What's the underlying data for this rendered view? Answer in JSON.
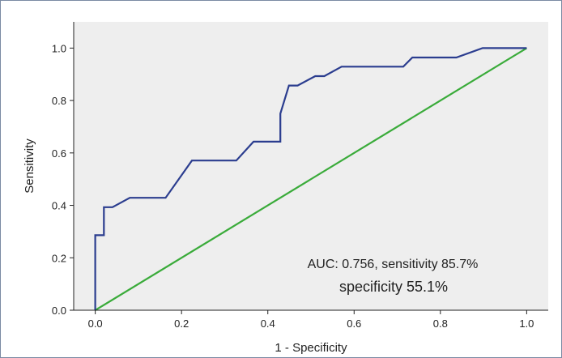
{
  "chart_data": {
    "type": "line",
    "title": "",
    "xlabel": "1 - Specificity",
    "ylabel": "Sensitivity",
    "xlim": [
      -0.05,
      1.05
    ],
    "ylim": [
      0.0,
      1.1
    ],
    "x_ticks": [
      "0.0",
      "0.2",
      "0.4",
      "0.6",
      "0.8",
      "1.0"
    ],
    "y_ticks": [
      "0.0",
      "0.2",
      "0.4",
      "0.6",
      "0.8",
      "1.0"
    ],
    "grid": false,
    "plot_background": "#eeeeee",
    "annotation_line1": "AUC: 0.756, sensitivity 85.7%",
    "annotation_line2": "specificity 55.1%",
    "series": [
      {
        "color": "#2b3d8f",
        "x": [
          0.0,
          0.0,
          0.0,
          0.02,
          0.02,
          0.04,
          0.08,
          0.163,
          0.224,
          0.327,
          0.367,
          0.429,
          0.429,
          0.449,
          0.469,
          0.51,
          0.531,
          0.571,
          0.714,
          0.735,
          0.837,
          0.898,
          1.0
        ],
        "y": [
          0.0,
          0.286,
          0.286,
          0.286,
          0.393,
          0.393,
          0.429,
          0.429,
          0.571,
          0.571,
          0.643,
          0.643,
          0.75,
          0.857,
          0.857,
          0.893,
          0.893,
          0.929,
          0.929,
          0.964,
          0.964,
          1.0,
          1.0
        ]
      },
      {
        "color": "#3aab3a",
        "x": [
          0.0,
          1.0
        ],
        "y": [
          0.0,
          1.0
        ]
      }
    ]
  }
}
